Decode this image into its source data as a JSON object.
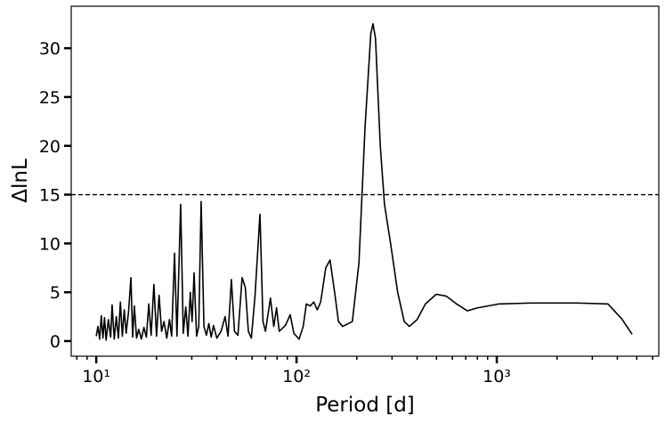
{
  "chart_data": {
    "type": "line",
    "xlabel": "Period [d]",
    "ylabel": "ΔlnL",
    "xscale": "log",
    "color": "#000000",
    "x": [
      10,
      10.2,
      10.4,
      10.6,
      10.8,
      11,
      11.2,
      11.5,
      11.8,
      12,
      12.3,
      12.6,
      12.9,
      13.2,
      13.5,
      13.8,
      14.1,
      14.5,
      14.9,
      15.2,
      15.5,
      15.9,
      16.3,
      16.8,
      17.3,
      17.8,
      18.3,
      18.8,
      19.4,
      20,
      20.6,
      21.2,
      21.8,
      22.5,
      23.2,
      23.8,
      24.6,
      25.3,
      26.4,
      27.2,
      28,
      28.7,
      29.5,
      30.1,
      30.8,
      31.7,
      32.5,
      33.4,
      34.5,
      35.5,
      36.5,
      37.5,
      38.5,
      40,
      42,
      44,
      45.5,
      47.3,
      49,
      51,
      53.5,
      55.5,
      57.5,
      59.5,
      62,
      65.7,
      68,
      70,
      74.1,
      77,
      79.5,
      82,
      88,
      93,
      97,
      103,
      108,
      112,
      117,
      122,
      127,
      132,
      140,
      147,
      155,
      162,
      170,
      190,
      205,
      220,
      235,
      241,
      248,
      262,
      275,
      295,
      320,
      345,
      366,
      400,
      440,
      499,
      560,
      630,
      713,
      800,
      1020,
      1500,
      2500,
      3590,
      4200,
      4740
    ],
    "values": [
      0.5,
      1.5,
      0.2,
      2.6,
      0.3,
      2.4,
      0.1,
      2.2,
      0.4,
      3.7,
      0.2,
      2.5,
      0.3,
      4,
      0.5,
      3.2,
      0.8,
      3,
      6.5,
      0.4,
      3.6,
      0.3,
      1.2,
      0.2,
      1.4,
      0.4,
      3.8,
      0.6,
      5.8,
      0.5,
      4.7,
      1,
      2,
      0.3,
      2.2,
      0.5,
      9,
      0.5,
      14,
      0.8,
      3.5,
      0.5,
      5,
      2,
      7,
      0.5,
      1.5,
      14.3,
      1.5,
      0.6,
      1.8,
      0.4,
      1.6,
      0.3,
      1,
      2.5,
      0.5,
      6.3,
      1,
      0.6,
      6.5,
      5.5,
      1,
      0.3,
      4.5,
      13,
      2,
      1,
      4.4,
      1.5,
      3.4,
      1,
      1.6,
      2.7,
      0.8,
      0.2,
      1.5,
      3.8,
      3.6,
      4,
      3.2,
      4,
      7.5,
      8.3,
      5,
      2,
      1.5,
      2,
      8,
      22,
      31.5,
      32.5,
      31,
      20,
      14,
      10,
      5,
      2,
      1.5,
      2.2,
      3.8,
      4.8,
      4.6,
      3.8,
      3.1,
      3.4,
      3.8,
      3.9,
      3.9,
      3.8,
      2.3,
      0.7
    ],
    "hline": 15,
    "xlim": [
      7.5,
      6440
    ],
    "ylim": [
      -1.55,
      34.3
    ],
    "xticks": [
      {
        "value": 10,
        "label": "10¹"
      },
      {
        "value": 100,
        "label": "10²"
      },
      {
        "value": 1000,
        "label": "10³"
      }
    ],
    "xminorticks": [
      8,
      9,
      20,
      30,
      40,
      50,
      60,
      70,
      80,
      90,
      200,
      300,
      400,
      500,
      600,
      700,
      800,
      900,
      2000,
      3000,
      4000,
      5000,
      6000
    ],
    "yticks": [
      0,
      5,
      10,
      15,
      20,
      25,
      30
    ]
  }
}
